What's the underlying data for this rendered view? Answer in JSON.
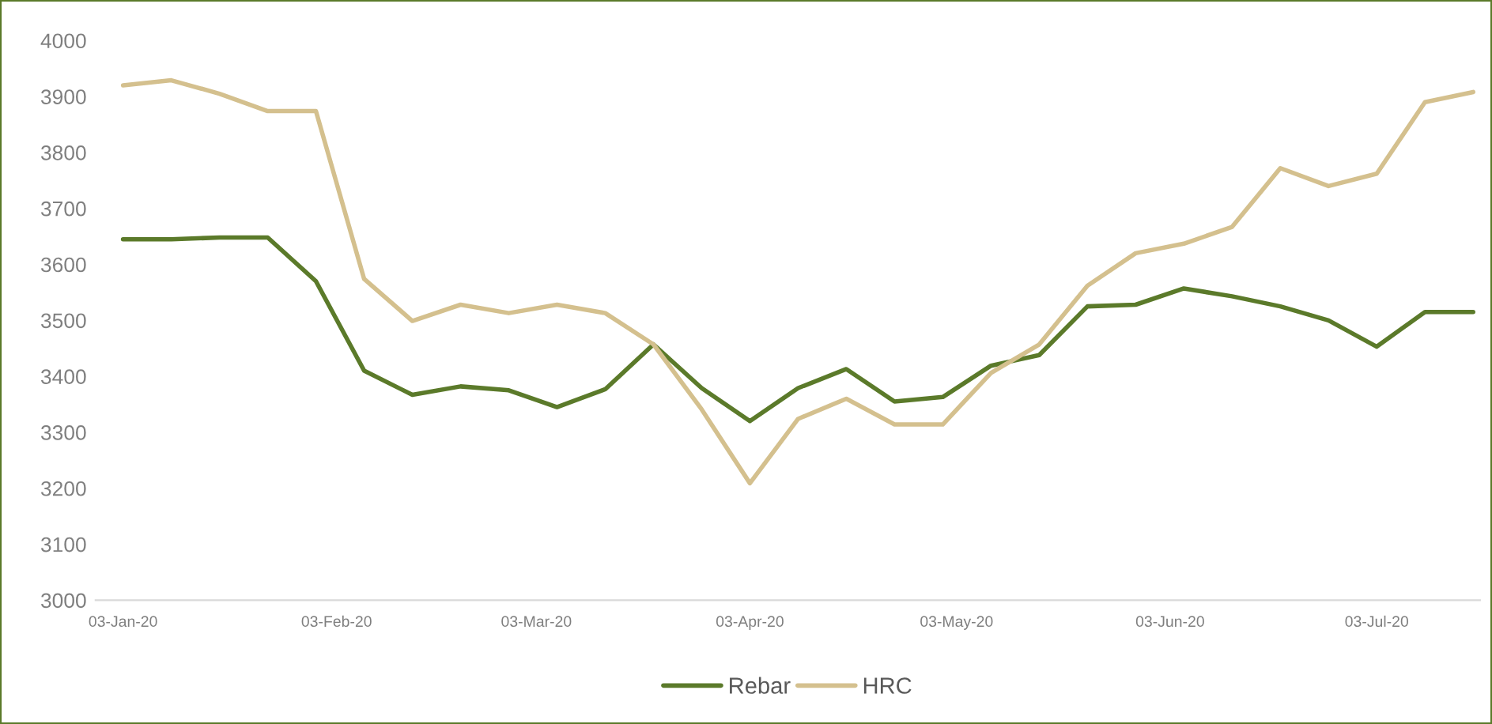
{
  "chart_data": {
    "type": "line",
    "x": [
      "2020-01-03",
      "2020-01-10",
      "2020-01-17",
      "2020-01-24",
      "2020-01-31",
      "2020-02-07",
      "2020-02-14",
      "2020-02-21",
      "2020-02-28",
      "2020-03-06",
      "2020-03-13",
      "2020-03-20",
      "2020-03-27",
      "2020-04-03",
      "2020-04-10",
      "2020-04-17",
      "2020-04-24",
      "2020-05-01",
      "2020-05-08",
      "2020-05-15",
      "2020-05-22",
      "2020-05-29",
      "2020-06-05",
      "2020-06-12",
      "2020-06-19",
      "2020-06-26",
      "2020-07-03",
      "2020-07-10",
      "2020-07-17"
    ],
    "series": [
      {
        "name": "Rebar",
        "color": "#5b7a2a",
        "values": [
          3645,
          3645,
          3648,
          3648,
          3570,
          3410,
          3367,
          3382,
          3375,
          3345,
          3377,
          3457,
          3379,
          3320,
          3379,
          3413,
          3355,
          3363,
          3419,
          3438,
          3525,
          3528,
          3557,
          3543,
          3525,
          3500,
          3453,
          3515,
          3515
        ]
      },
      {
        "name": "HRC",
        "color": "#d4c08e",
        "values": [
          3920,
          3929,
          3905,
          3874,
          3874,
          3574,
          3499,
          3528,
          3513,
          3528,
          3513,
          3457,
          3341,
          3209,
          3324,
          3360,
          3314,
          3314,
          3406,
          3457,
          3562,
          3620,
          3637,
          3667,
          3772,
          3740,
          3762,
          3890,
          3908
        ]
      }
    ],
    "xlim": [
      "2019-12-30",
      "2020-07-18"
    ],
    "xticks": [
      {
        "value": "2020-01-03",
        "label": "03-Jan-20"
      },
      {
        "value": "2020-02-03",
        "label": "03-Feb-20"
      },
      {
        "value": "2020-03-03",
        "label": "03-Mar-20"
      },
      {
        "value": "2020-04-03",
        "label": "03-Apr-20"
      },
      {
        "value": "2020-05-03",
        "label": "03-May-20"
      },
      {
        "value": "2020-06-03",
        "label": "03-Jun-20"
      },
      {
        "value": "2020-07-03",
        "label": "03-Jul-20"
      }
    ],
    "ylim": [
      3000,
      4000
    ],
    "yticks": [
      3000,
      3100,
      3200,
      3300,
      3400,
      3500,
      3600,
      3700,
      3800,
      3900,
      4000
    ],
    "grid": false,
    "legend": "bottom",
    "marker": "none",
    "line_style": "solid"
  }
}
